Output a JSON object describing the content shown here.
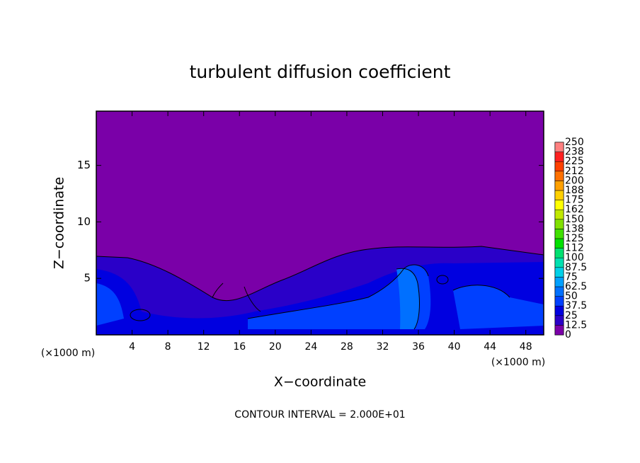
{
  "chart_data": {
    "type": "contour",
    "title": "turbulent diffusion coefficient",
    "x_label": "X−coordinate",
    "y_label": "Z−coordinate",
    "x_unit_left": "(×1000 m)",
    "x_unit_right": "(×1000 m)",
    "note": "CONTOUR INTERVAL = 2.000E+01",
    "xlim": [
      0,
      50
    ],
    "xticks": [
      4,
      8,
      12,
      16,
      20,
      24,
      28,
      32,
      36,
      40,
      44,
      48
    ],
    "ylim": [
      0,
      19.8
    ],
    "yticks": [
      5,
      10,
      15
    ],
    "colorbar": {
      "ticks": [
        0,
        12.5,
        25,
        37.5,
        50,
        62.5,
        75,
        87.5,
        100,
        {
          "value": 112.5,
          "label": "112"
        },
        125,
        {
          "value": 137.5,
          "label": "138"
        },
        150,
        {
          "value": 162.5,
          "label": "162"
        },
        175,
        {
          "value": 187.5,
          "label": "188"
        },
        200,
        {
          "value": 212.5,
          "label": "212"
        },
        225,
        {
          "value": 237.5,
          "label": "238"
        },
        250
      ],
      "colors": [
        "#7a00a8",
        "#2a00c8",
        "#0000e0",
        "#0040ff",
        "#0070ff",
        "#00a0ff",
        "#00d0e8",
        "#00e0b0",
        "#00e070",
        "#00e000",
        "#40e000",
        "#80e000",
        "#c0e800",
        "#ffff00",
        "#ffd000",
        "#ffa000",
        "#ff7000",
        "#ff4000",
        "#ff2020",
        "#ff8080"
      ]
    }
  }
}
